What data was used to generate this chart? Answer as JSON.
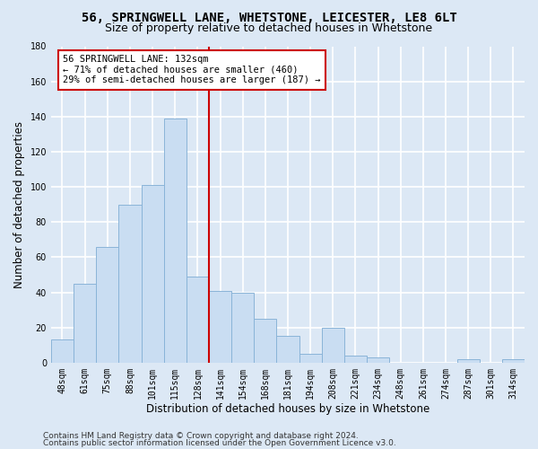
{
  "title_line1": "56, SPRINGWELL LANE, WHETSTONE, LEICESTER, LE8 6LT",
  "title_line2": "Size of property relative to detached houses in Whetstone",
  "xlabel": "Distribution of detached houses by size in Whetstone",
  "ylabel": "Number of detached properties",
  "categories": [
    "48sqm",
    "61sqm",
    "75sqm",
    "88sqm",
    "101sqm",
    "115sqm",
    "128sqm",
    "141sqm",
    "154sqm",
    "168sqm",
    "181sqm",
    "194sqm",
    "208sqm",
    "221sqm",
    "234sqm",
    "248sqm",
    "261sqm",
    "274sqm",
    "287sqm",
    "301sqm",
    "314sqm"
  ],
  "values": [
    13,
    45,
    66,
    90,
    101,
    139,
    49,
    41,
    40,
    25,
    15,
    5,
    20,
    4,
    3,
    0,
    0,
    0,
    2,
    0,
    2
  ],
  "bar_color": "#c9ddf2",
  "bar_edge_color": "#8ab4d8",
  "vline_x": 6.5,
  "vline_color": "#cc0000",
  "annotation_text": "56 SPRINGWELL LANE: 132sqm\n← 71% of detached houses are smaller (460)\n29% of semi-detached houses are larger (187) →",
  "annotation_box_color": "#ffffff",
  "annotation_box_edge": "#cc0000",
  "ylim": [
    0,
    180
  ],
  "yticks": [
    0,
    20,
    40,
    60,
    80,
    100,
    120,
    140,
    160,
    180
  ],
  "footer_line1": "Contains HM Land Registry data © Crown copyright and database right 2024.",
  "footer_line2": "Contains public sector information licensed under the Open Government Licence v3.0.",
  "bg_color": "#dce8f5",
  "plot_bg_color": "#dce8f5",
  "grid_color": "#ffffff",
  "title_fontsize": 10,
  "subtitle_fontsize": 9,
  "label_fontsize": 8.5,
  "tick_fontsize": 7,
  "footer_fontsize": 6.5
}
